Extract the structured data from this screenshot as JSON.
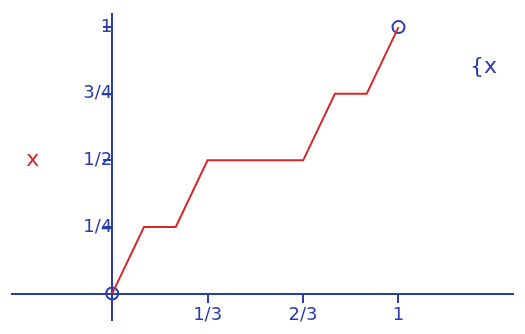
{
  "chart_data": {
    "type": "line",
    "xlim": [
      -0.35,
      1.4
    ],
    "ylim": [
      -0.1,
      1.05
    ],
    "xticks": [
      {
        "value": 0.3333,
        "label": "1/3"
      },
      {
        "value": 0.6667,
        "label": "2/3"
      },
      1
    ],
    "yticks": [
      {
        "value": 0.25,
        "label": "1/4"
      },
      {
        "value": 0.5,
        "label": "1/2"
      },
      {
        "value": 0.75,
        "label": "3/4"
      },
      1
    ],
    "grid": false,
    "series": [
      {
        "color": "#d62828",
        "line_style": "solid",
        "marker": "none",
        "x": [
          0,
          0.111,
          0.222,
          0.333,
          0.667,
          0.778,
          0.889,
          1
        ],
        "values": [
          0,
          0.25,
          0.25,
          0.5,
          0.5,
          0.75,
          0.75,
          1
        ]
      },
      {
        "type": "scatter",
        "color": "#2b3cae",
        "marker": "circle",
        "x": [
          0,
          1
        ],
        "values": [
          0,
          1
        ]
      }
    ],
    "annotations": [
      {
        "text": "x",
        "color": "#d62828"
      },
      {
        "text": "{x",
        "color": "#2b3cae"
      }
    ]
  }
}
